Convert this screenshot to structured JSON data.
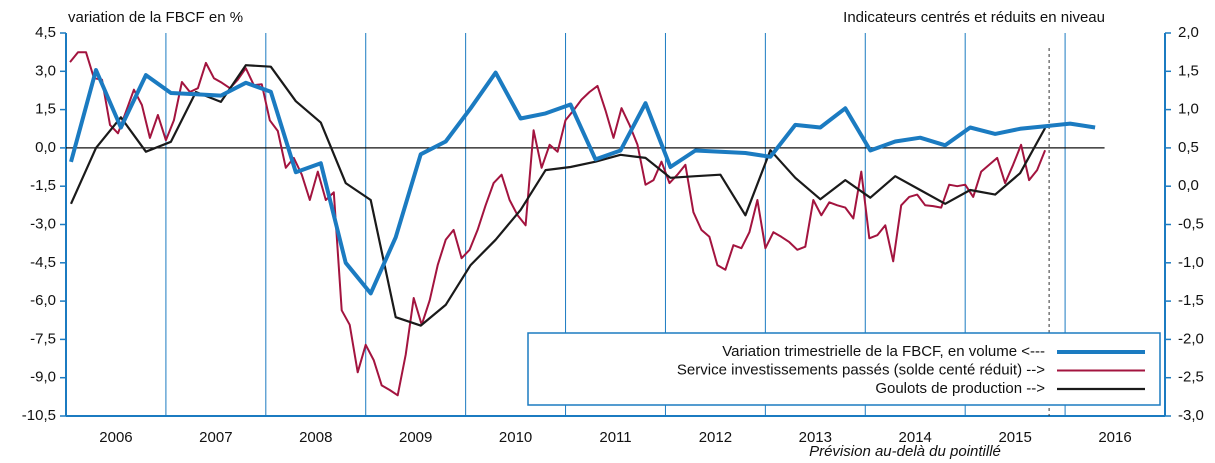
{
  "chart_data": {
    "type": "line",
    "y_label": "variation de la FBCF en %",
    "y2_label": "Indicateurs centrés et réduits en niveau",
    "annotation": "Prévision au-delà du pointillé",
    "forecast_x": 2015.84,
    "categories": [
      "2006",
      "2007",
      "2008",
      "2009",
      "2010",
      "2011",
      "2012",
      "2013",
      "2014",
      "2015",
      "2016"
    ],
    "xlim": [
      2006,
      2017
    ],
    "ylim": [
      -10.5,
      4.5
    ],
    "yticks": [
      {
        "value": 4.5,
        "label": "4,5"
      },
      {
        "value": 3.0,
        "label": "3,0"
      },
      {
        "value": 1.5,
        "label": "1,5"
      },
      {
        "value": 0.0,
        "label": "0,0"
      },
      {
        "value": -1.5,
        "label": "-1,5"
      },
      {
        "value": -3.0,
        "label": "-3,0"
      },
      {
        "value": -4.5,
        "label": "-4,5"
      },
      {
        "value": -6.0,
        "label": "-6,0"
      },
      {
        "value": -7.5,
        "label": "-7,5"
      },
      {
        "value": -9.0,
        "label": "-9,0"
      },
      {
        "value": -10.5,
        "label": "-10,5"
      }
    ],
    "y2lim": [
      -3.0,
      2.0
    ],
    "y2ticks": [
      {
        "value": 2.0,
        "label": "2,0"
      },
      {
        "value": 1.5,
        "label": "1,5"
      },
      {
        "value": 1.0,
        "label": "1,0"
      },
      {
        "value": 0.5,
        "label": "0,5"
      },
      {
        "value": 0.0,
        "label": "0,0"
      },
      {
        "value": -0.5,
        "label": "-0,5"
      },
      {
        "value": -1.0,
        "label": "-1,0"
      },
      {
        "value": -1.5,
        "label": "-1,5"
      },
      {
        "value": -2.0,
        "label": "-2,0"
      },
      {
        "value": -2.5,
        "label": "-2,5"
      },
      {
        "value": -3.0,
        "label": "-3,0"
      }
    ],
    "series": [
      {
        "name": "Variation trimestrielle de la FBCF, en volume <---",
        "color": "#1b7bc1",
        "width": 4,
        "x": [
          2006.05,
          2006.3,
          2006.55,
          2006.8,
          2007.05,
          2007.3,
          2007.55,
          2007.8,
          2008.05,
          2008.3,
          2008.55,
          2008.8,
          2009.05,
          2009.3,
          2009.55,
          2009.8,
          2010.05,
          2010.3,
          2010.55,
          2010.8,
          2011.05,
          2011.3,
          2011.55,
          2011.8,
          2012.05,
          2012.3,
          2012.55,
          2012.8,
          2013.05,
          2013.3,
          2013.55,
          2013.8,
          2014.05,
          2014.3,
          2014.55,
          2014.8,
          2015.05,
          2015.3,
          2015.55,
          2015.8,
          2016.05,
          2016.3
        ],
        "values": [
          -0.55,
          3.05,
          0.8,
          2.85,
          2.15,
          2.1,
          2.05,
          2.55,
          2.2,
          -0.95,
          -0.6,
          -4.5,
          -5.7,
          -3.5,
          -0.25,
          0.25,
          1.55,
          2.95,
          1.15,
          1.35,
          1.7,
          -0.45,
          -0.1,
          1.75,
          -0.75,
          -0.1,
          -0.15,
          -0.2,
          -0.35,
          0.9,
          0.8,
          1.55,
          -0.1,
          0.25,
          0.4,
          0.1,
          0.8,
          0.55,
          0.75,
          0.85,
          0.95,
          0.8
        ]
      },
      {
        "name": "Service investissements passés (solde centé réduit) -->",
        "color": "#a3143f",
        "width": 2,
        "axis": "y2",
        "x": [
          2006.04,
          2006.12,
          2006.2,
          2006.28,
          2006.36,
          2006.44,
          2006.52,
          2006.6,
          2006.68,
          2006.76,
          2006.84,
          2006.92,
          2007,
          2007.08,
          2007.16,
          2007.24,
          2007.32,
          2007.4,
          2007.48,
          2007.56,
          2007.64,
          2007.72,
          2007.8,
          2007.88,
          2007.96,
          2008.04,
          2008.12,
          2008.2,
          2008.28,
          2008.36,
          2008.44,
          2008.52,
          2008.6,
          2008.68,
          2008.76,
          2008.84,
          2008.92,
          2009,
          2009.08,
          2009.16,
          2009.24,
          2009.32,
          2009.4,
          2009.48,
          2009.56,
          2009.64,
          2009.72,
          2009.8,
          2009.88,
          2009.96,
          2010.04,
          2010.12,
          2010.2,
          2010.28,
          2010.36,
          2010.44,
          2010.52,
          2010.6,
          2010.68,
          2010.76,
          2010.84,
          2010.92,
          2011,
          2011.08,
          2011.16,
          2011.24,
          2011.32,
          2011.4,
          2011.48,
          2011.56,
          2011.64,
          2011.72,
          2011.8,
          2011.88,
          2011.96,
          2012.04,
          2012.12,
          2012.2,
          2012.28,
          2012.36,
          2012.44,
          2012.52,
          2012.6,
          2012.68,
          2012.76,
          2012.84,
          2012.92,
          2013,
          2013.08,
          2013.16,
          2013.24,
          2013.32,
          2013.4,
          2013.48,
          2013.56,
          2013.64,
          2013.72,
          2013.8,
          2013.88,
          2013.96,
          2014.04,
          2014.12,
          2014.2,
          2014.28,
          2014.36,
          2014.44,
          2014.52,
          2014.6,
          2014.68,
          2014.76,
          2014.84,
          2014.92,
          2015,
          2015.08,
          2015.16,
          2015.24,
          2015.32,
          2015.4,
          2015.48,
          2015.56,
          2015.64,
          2015.72,
          2015.8
        ],
        "values": [
          1.62,
          1.75,
          1.75,
          1.41,
          1.39,
          0.8,
          0.69,
          0.97,
          1.26,
          1.06,
          0.63,
          0.93,
          0.6,
          0.86,
          1.36,
          1.23,
          1.28,
          1.61,
          1.41,
          1.35,
          1.28,
          1.39,
          1.54,
          1.32,
          1.33,
          0.86,
          0.72,
          0.24,
          0.37,
          0.15,
          -0.18,
          0.19,
          -0.18,
          -0.08,
          -1.62,
          -1.81,
          -2.43,
          -2.07,
          -2.27,
          -2.6,
          -2.66,
          -2.73,
          -2.2,
          -1.46,
          -1.81,
          -1.49,
          -1.03,
          -0.7,
          -0.57,
          -0.94,
          -0.83,
          -0.57,
          -0.25,
          0.04,
          0.15,
          -0.18,
          -0.38,
          -0.51,
          0.73,
          0.24,
          0.54,
          0.45,
          0.86,
          0.99,
          1.13,
          1.23,
          1.31,
          0.99,
          0.63,
          1.02,
          0.8,
          0.54,
          0.02,
          0.08,
          0.32,
          0.04,
          0.15,
          0.28,
          -0.34,
          -0.57,
          -0.66,
          -1.03,
          -1.09,
          -0.77,
          -0.81,
          -0.6,
          -0.18,
          -0.81,
          -0.6,
          -0.66,
          -0.73,
          -0.83,
          -0.79,
          -0.18,
          -0.38,
          -0.21,
          -0.25,
          -0.28,
          -0.42,
          0.19,
          -0.68,
          -0.64,
          -0.51,
          -0.98,
          -0.25,
          -0.14,
          -0.11,
          -0.25,
          -0.26,
          -0.28,
          0.02,
          0.0,
          0.02,
          -0.14,
          0.19,
          0.28,
          0.37,
          0.04,
          0.28,
          0.54,
          0.08,
          0.21,
          0.47
        ]
      },
      {
        "name": "Goulots de production -->",
        "color": "#1a1a1a",
        "width": 2.2,
        "axis": "y2",
        "x": [
          2006.05,
          2006.3,
          2006.55,
          2006.8,
          2007.05,
          2007.3,
          2007.55,
          2007.8,
          2008.05,
          2008.3,
          2008.55,
          2008.8,
          2009.05,
          2009.3,
          2009.55,
          2009.8,
          2010.05,
          2010.3,
          2010.55,
          2010.8,
          2011.05,
          2011.3,
          2011.55,
          2011.8,
          2012.05,
          2012.3,
          2012.55,
          2012.8,
          2013.05,
          2013.3,
          2013.55,
          2013.8,
          2014.05,
          2014.3,
          2014.55,
          2014.8,
          2015.05,
          2015.3,
          2015.55,
          2015.8
        ],
        "values": [
          -0.23,
          0.5,
          0.9,
          0.45,
          0.58,
          1.23,
          1.1,
          1.58,
          1.56,
          1.11,
          0.83,
          0.04,
          -0.18,
          -1.71,
          -1.82,
          -1.55,
          -1.03,
          -0.7,
          -0.31,
          0.21,
          0.25,
          0.32,
          0.41,
          0.37,
          0.11,
          0.13,
          0.15,
          -0.38,
          0.47,
          0.11,
          -0.17,
          0.08,
          -0.15,
          0.13,
          -0.05,
          -0.23,
          -0.05,
          -0.11,
          0.17,
          0.76
        ]
      }
    ]
  }
}
